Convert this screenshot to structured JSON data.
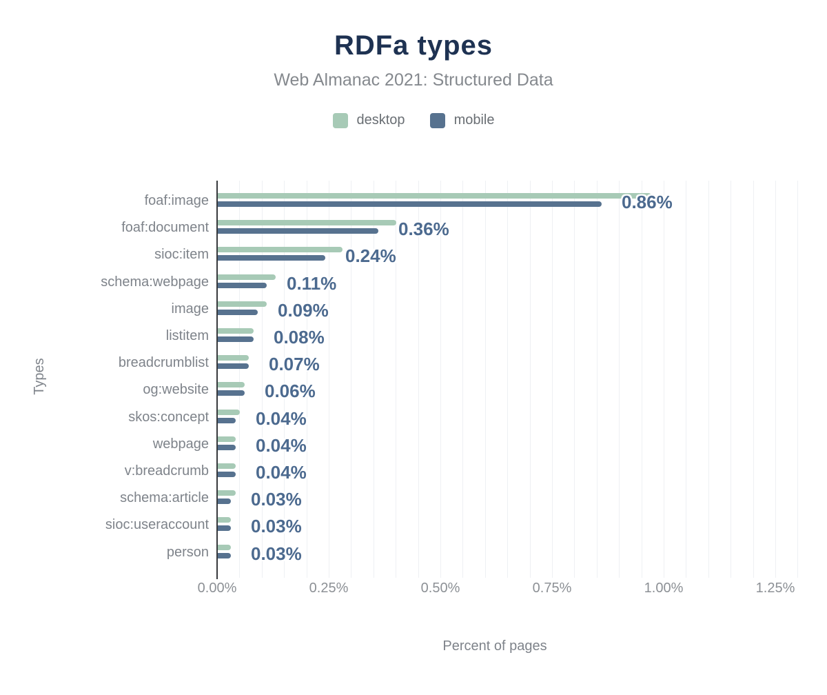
{
  "header": {
    "title": "RDFa types",
    "subtitle": "Web Almanac 2021: Structured Data"
  },
  "legend": {
    "items": [
      {
        "label": "desktop",
        "color": "#a7cab6"
      },
      {
        "label": "mobile",
        "color": "#57728f"
      }
    ]
  },
  "axes": {
    "x_title": "Percent of pages",
    "y_title": "Types",
    "x_ticks": [
      {
        "label": "0.00%",
        "value": 0
      },
      {
        "label": "0.25%",
        "value": 0.25
      },
      {
        "label": "0.50%",
        "value": 0.5
      },
      {
        "label": "0.75%",
        "value": 0.75
      },
      {
        "label": "1.00%",
        "value": 1.0
      },
      {
        "label": "1.25%",
        "value": 1.25
      }
    ]
  },
  "chart_data": {
    "type": "bar",
    "orientation": "horizontal",
    "title": "RDFa types",
    "subtitle": "Web Almanac 2021: Structured Data",
    "xlabel": "Percent of pages",
    "ylabel": "Types",
    "xlim": [
      0,
      1.31
    ],
    "grid": true,
    "grid_step": 0.05,
    "legend_position": "top",
    "categories": [
      "foaf:image",
      "foaf:document",
      "sioc:item",
      "schema:webpage",
      "image",
      "listitem",
      "breadcrumblist",
      "og:website",
      "skos:concept",
      "webpage",
      "v:breadcrumb",
      "schema:article",
      "sioc:useraccount",
      "person"
    ],
    "series": [
      {
        "name": "desktop",
        "color": "#a7cab6",
        "values": [
          0.97,
          0.4,
          0.28,
          0.13,
          0.11,
          0.08,
          0.07,
          0.06,
          0.05,
          0.04,
          0.04,
          0.04,
          0.03,
          0.03
        ]
      },
      {
        "name": "mobile",
        "color": "#57728f",
        "values": [
          0.86,
          0.36,
          0.24,
          0.11,
          0.09,
          0.08,
          0.07,
          0.06,
          0.04,
          0.04,
          0.04,
          0.03,
          0.03,
          0.03
        ]
      }
    ],
    "data_labels": [
      "0.86%",
      "0.36%",
      "0.24%",
      "0.11%",
      "0.09%",
      "0.08%",
      "0.07%",
      "0.06%",
      "0.04%",
      "0.04%",
      "0.04%",
      "0.03%",
      "0.03%",
      "0.03%"
    ],
    "data_labels_series": "mobile"
  },
  "colors": {
    "title": "#1e3252",
    "subtitle": "#85898e",
    "legend_text": "#696e73",
    "category_text": "#7e838a",
    "tick_text": "#8c9095",
    "axis_title_text": "#7e838a",
    "value_label": "#4c6a8f",
    "axis_line": "#37393c",
    "gridline": "#eef0f3",
    "background": "#ffffff"
  }
}
